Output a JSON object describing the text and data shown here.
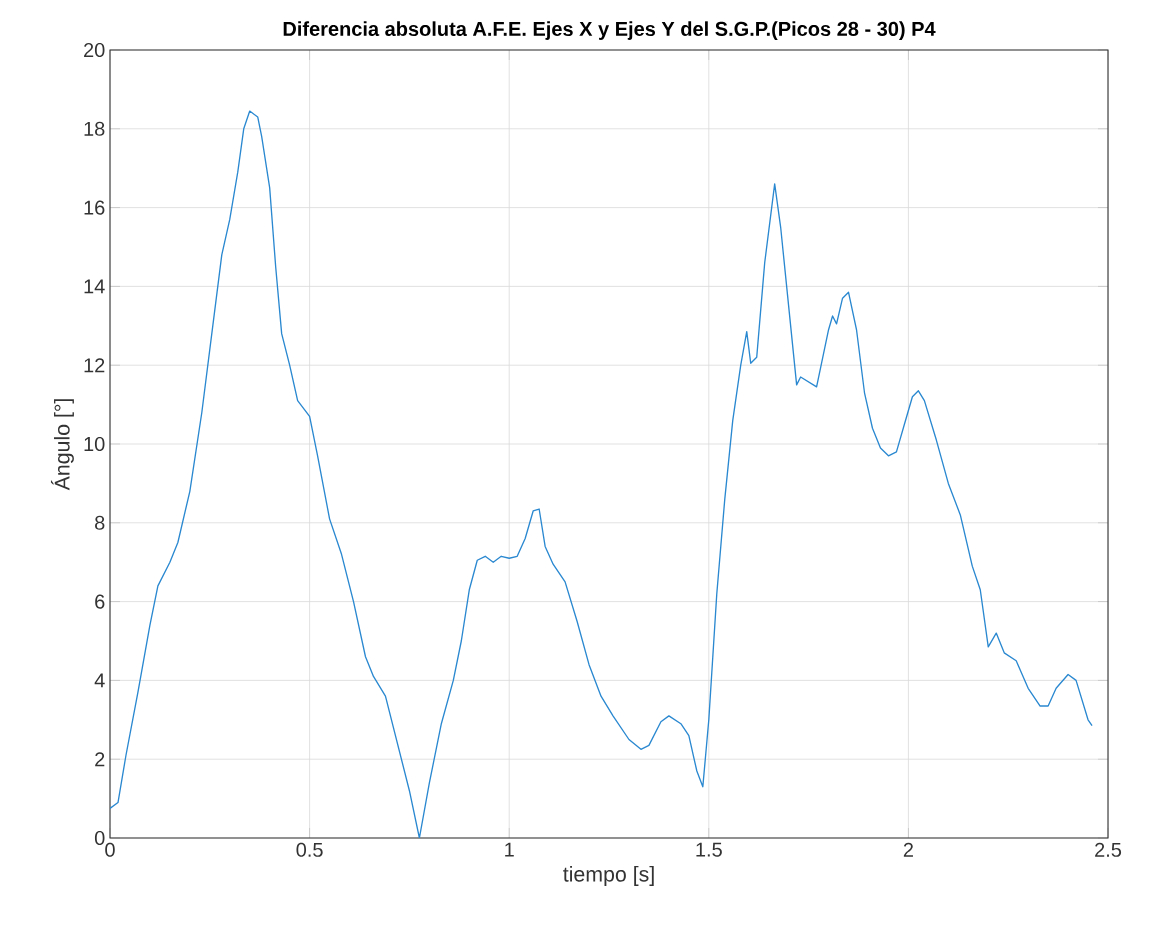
{
  "chart_data": {
    "type": "line",
    "title": "Diferencia absoluta A.F.E. Ejes X y Ejes Y del S.G.P.(Picos 28 - 30) P4",
    "xlabel": "tiempo [s]",
    "ylabel": "Ángulo [°]",
    "x": [
      0,
      0.02,
      0.04,
      0.07,
      0.1,
      0.12,
      0.15,
      0.17,
      0.2,
      0.23,
      0.26,
      0.28,
      0.3,
      0.32,
      0.335,
      0.35,
      0.37,
      0.38,
      0.4,
      0.415,
      0.43,
      0.45,
      0.47,
      0.5,
      0.52,
      0.55,
      0.58,
      0.61,
      0.64,
      0.66,
      0.69,
      0.72,
      0.75,
      0.775,
      0.8,
      0.83,
      0.86,
      0.88,
      0.9,
      0.92,
      0.94,
      0.96,
      0.98,
      1.0,
      1.02,
      1.04,
      1.06,
      1.075,
      1.09,
      1.11,
      1.14,
      1.17,
      1.2,
      1.23,
      1.26,
      1.3,
      1.33,
      1.35,
      1.38,
      1.4,
      1.43,
      1.45,
      1.47,
      1.485,
      1.5,
      1.52,
      1.54,
      1.56,
      1.58,
      1.595,
      1.605,
      1.62,
      1.64,
      1.665,
      1.68,
      1.7,
      1.72,
      1.73,
      1.77,
      1.8,
      1.81,
      1.82,
      1.835,
      1.85,
      1.87,
      1.89,
      1.91,
      1.93,
      1.95,
      1.97,
      1.99,
      2.01,
      2.025,
      2.04,
      2.07,
      2.1,
      2.13,
      2.16,
      2.18,
      2.2,
      2.22,
      2.24,
      2.27,
      2.3,
      2.33,
      2.35,
      2.37,
      2.4,
      2.42,
      2.45,
      2.46
    ],
    "values": [
      0.75,
      0.9,
      2.1,
      3.7,
      5.4,
      6.4,
      7.0,
      7.5,
      8.8,
      10.8,
      13.2,
      14.8,
      15.7,
      16.9,
      18.0,
      18.45,
      18.3,
      17.8,
      16.5,
      14.5,
      12.8,
      12.0,
      11.1,
      10.7,
      9.7,
      8.1,
      7.2,
      6.0,
      4.6,
      4.1,
      3.6,
      2.4,
      1.2,
      0.0,
      1.4,
      2.9,
      4.0,
      5.0,
      6.3,
      7.05,
      7.15,
      7.0,
      7.15,
      7.1,
      7.15,
      7.6,
      8.3,
      8.35,
      7.4,
      6.95,
      6.5,
      5.5,
      4.4,
      3.6,
      3.1,
      2.5,
      2.25,
      2.35,
      2.95,
      3.1,
      2.9,
      2.6,
      1.7,
      1.3,
      3.0,
      6.2,
      8.6,
      10.6,
      12.0,
      12.85,
      12.05,
      12.2,
      14.6,
      16.6,
      15.5,
      13.5,
      11.5,
      11.7,
      11.45,
      12.9,
      13.25,
      13.05,
      13.7,
      13.85,
      12.9,
      11.3,
      10.4,
      9.9,
      9.7,
      9.8,
      10.5,
      11.2,
      11.35,
      11.1,
      10.1,
      9.0,
      8.2,
      6.9,
      6.3,
      4.85,
      5.2,
      4.7,
      4.5,
      3.8,
      3.35,
      3.35,
      3.8,
      4.15,
      4.0,
      3.0,
      2.85
    ],
    "color": "#2a88d0",
    "xlim": [
      0,
      2.5
    ],
    "ylim": [
      0,
      20
    ],
    "xticks": [
      0,
      0.5,
      1,
      1.5,
      2,
      2.5
    ],
    "yticks": [
      0,
      2,
      4,
      6,
      8,
      10,
      12,
      14,
      16,
      18,
      20
    ],
    "grid": true
  }
}
